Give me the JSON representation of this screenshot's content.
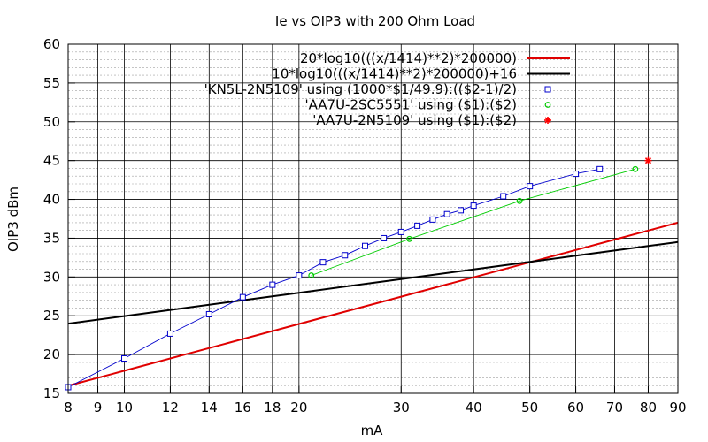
{
  "chart_data": {
    "type": "line",
    "title": "Ie vs OIP3 with 200 Ohm Load",
    "xlabel": "mA",
    "ylabel": "OIP3 dBm",
    "x_scale": "log",
    "xlim": [
      8,
      90
    ],
    "ylim": [
      15,
      60
    ],
    "grid": true,
    "legend_position": "top-right",
    "x_ticks": [
      8,
      9,
      10,
      12,
      14,
      16,
      18,
      20,
      30,
      40,
      50,
      60,
      70,
      80,
      90
    ],
    "y_ticks": [
      15,
      20,
      25,
      30,
      35,
      40,
      45,
      50,
      55,
      60
    ],
    "series": [
      {
        "name": "20*log10(((x/1414)**2)*200000)",
        "style": "line",
        "color": "#e00000",
        "x": [
          8,
          10,
          15,
          20,
          30,
          40,
          50,
          60,
          70,
          80,
          90
        ],
        "y": [
          15.98,
          17.92,
          21.44,
          23.94,
          27.46,
          29.96,
          31.9,
          33.48,
          34.82,
          35.98,
          37.0
        ]
      },
      {
        "name": "10*log10(((x/1414)**2)*200000)+16",
        "style": "line",
        "color": "#000000",
        "x": [
          8,
          10,
          15,
          20,
          30,
          40,
          50,
          60,
          70,
          80,
          90
        ],
        "y": [
          23.99,
          24.96,
          26.72,
          27.97,
          29.73,
          30.98,
          31.95,
          32.74,
          33.41,
          33.99,
          34.5
        ]
      },
      {
        "name": "'KN5L-2N5109' using (1000*$1/49.9):(($2-1)/2)",
        "style": "linespoints",
        "marker": "square",
        "color": "#0000cc",
        "x": [
          8,
          10,
          12,
          14,
          16,
          18,
          20,
          22,
          24,
          26,
          28,
          30,
          32,
          34,
          36,
          38,
          40,
          45,
          50,
          60,
          66
        ],
        "y": [
          15.8,
          19.5,
          22.7,
          25.2,
          27.4,
          29.0,
          30.2,
          31.9,
          32.8,
          34.0,
          35.0,
          35.8,
          36.6,
          37.4,
          38.1,
          38.6,
          39.2,
          40.4,
          41.7,
          43.3,
          43.9
        ]
      },
      {
        "name": "'AA7U-2SC5551' using ($1):($2)",
        "style": "linespoints",
        "marker": "circle",
        "color": "#00cc00",
        "x": [
          21,
          31,
          48,
          76
        ],
        "y": [
          30.2,
          34.9,
          39.8,
          43.9
        ]
      },
      {
        "name": "'AA7U-2N5109' using ($1):($2)",
        "style": "points",
        "marker": "star",
        "color": "#ff0000",
        "x": [
          80
        ],
        "y": [
          45.0
        ]
      }
    ]
  }
}
